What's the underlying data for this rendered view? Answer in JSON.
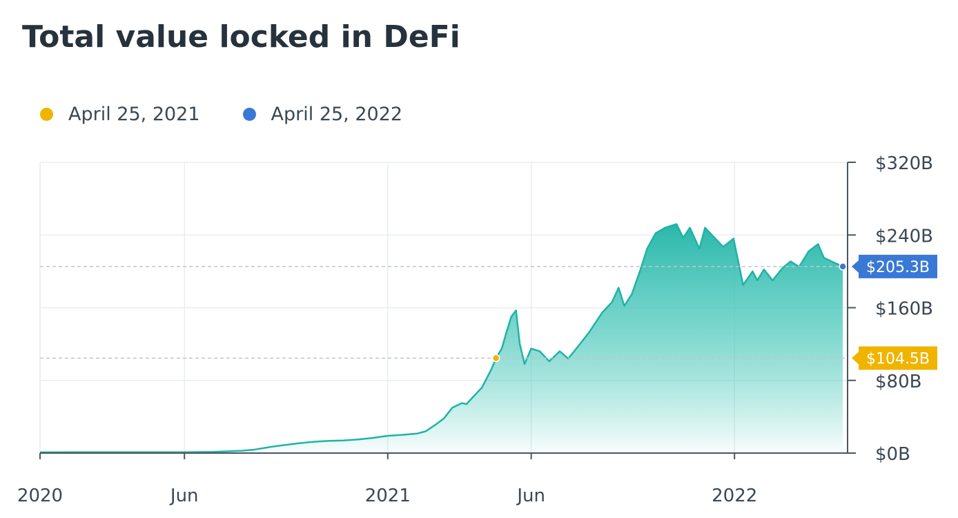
{
  "chart_data": {
    "type": "area",
    "title": "Total value locked in DeFi",
    "colors": {
      "line": "#1fb3a6",
      "fill": "#2bbfaf",
      "marker_2021": "#f0b400",
      "marker_2022": "#3a78d6"
    },
    "legend": [
      {
        "label": "April 25, 2021",
        "color": "#f0b400"
      },
      {
        "label": "April 25, 2022",
        "color": "#3a78d6"
      }
    ],
    "y_axis": {
      "ticks": [
        0,
        80,
        160,
        240,
        320
      ],
      "tick_labels": [
        "$0B",
        "$80B",
        "$160B",
        "$240B",
        "$320B"
      ],
      "range": [
        0,
        320
      ],
      "position": "right"
    },
    "x_axis": {
      "range": [
        "2020-01-01",
        "2022-04-30"
      ],
      "ticks": [
        "2020-01-01",
        "2020-06-01",
        "2021-01-01",
        "2021-06-01",
        "2022-01-01"
      ],
      "tick_labels": [
        "2020",
        "Jun",
        "2021",
        "Jun",
        "2022"
      ]
    },
    "grid": true,
    "markers": [
      {
        "date": "2021-04-25",
        "value": 104.5,
        "label": "$104.5B",
        "color": "#f0b400"
      },
      {
        "date": "2022-04-25",
        "value": 205.3,
        "label": "$205.3B",
        "color": "#3a78d6"
      }
    ],
    "series": [
      {
        "x": [
          "2020-01-01",
          "2020-02-01",
          "2020-03-01",
          "2020-04-01",
          "2020-05-01",
          "2020-06-01",
          "2020-07-01",
          "2020-08-01",
          "2020-08-15",
          "2020-09-01",
          "2020-09-15",
          "2020-10-01",
          "2020-10-15",
          "2020-11-01",
          "2020-11-15",
          "2020-12-01",
          "2020-12-15",
          "2021-01-01",
          "2021-01-15",
          "2021-02-01",
          "2021-02-10",
          "2021-02-20",
          "2021-03-01",
          "2021-03-10",
          "2021-03-20",
          "2021-03-25",
          "2021-04-01",
          "2021-04-10",
          "2021-04-20",
          "2021-04-25",
          "2021-05-01",
          "2021-05-06",
          "2021-05-11",
          "2021-05-16",
          "2021-05-20",
          "2021-05-25",
          "2021-06-01",
          "2021-06-10",
          "2021-06-20",
          "2021-07-01",
          "2021-07-10",
          "2021-07-20",
          "2021-08-01",
          "2021-08-15",
          "2021-08-25",
          "2021-09-01",
          "2021-09-07",
          "2021-09-15",
          "2021-09-25",
          "2021-10-01",
          "2021-10-10",
          "2021-10-20",
          "2021-11-01",
          "2021-11-08",
          "2021-11-15",
          "2021-11-25",
          "2021-12-01",
          "2021-12-10",
          "2021-12-20",
          "2021-12-31",
          "2022-01-10",
          "2022-01-20",
          "2022-01-25",
          "2022-02-01",
          "2022-02-10",
          "2022-02-20",
          "2022-03-01",
          "2022-03-10",
          "2022-03-20",
          "2022-03-30",
          "2022-04-05",
          "2022-04-15",
          "2022-04-25"
        ],
        "values": [
          0.8,
          1.0,
          0.9,
          0.9,
          0.9,
          1.0,
          1.3,
          2.6,
          4.0,
          7.0,
          9.0,
          11.0,
          12.5,
          13.5,
          13.8,
          15.0,
          16.5,
          19.0,
          20.0,
          21.5,
          24.0,
          31.0,
          38.0,
          50.0,
          55.0,
          54.0,
          62.0,
          72.0,
          92.0,
          104.5,
          115.0,
          133.0,
          150.0,
          157.0,
          120.0,
          98.0,
          115.0,
          112.0,
          101.0,
          112.0,
          104.0,
          117.0,
          133.0,
          155.0,
          166.0,
          182.0,
          162.0,
          175.0,
          205.0,
          225.0,
          242.0,
          248.0,
          252.0,
          237.0,
          248.0,
          225.0,
          248.0,
          238.0,
          227.0,
          236.0,
          185.0,
          200.0,
          190.0,
          202.0,
          190.0,
          203.0,
          211.0,
          205.0,
          222.0,
          230.0,
          215.0,
          210.0,
          205.3
        ]
      }
    ]
  }
}
